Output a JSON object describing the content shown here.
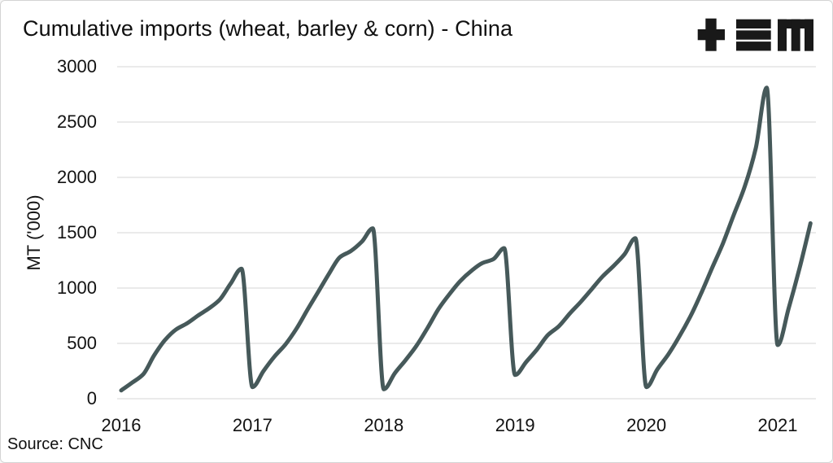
{
  "header": {
    "title": "Cumulative imports (wheat, barley & corn) - China"
  },
  "source": "Source: CNC",
  "chart_data": {
    "type": "line",
    "title": "Cumulative imports (wheat, barley & corn) - China",
    "xlabel": "",
    "ylabel": "MT ('000)",
    "ylim": [
      0,
      3000
    ],
    "yticks": [
      "0",
      "500",
      "1000",
      "1500",
      "2000",
      "2500",
      "3000"
    ],
    "ytick_values": [
      0,
      500,
      1000,
      1500,
      2000,
      2500,
      3000
    ],
    "xticks": [
      "2016",
      "2017",
      "2018",
      "2019",
      "2020",
      "2021"
    ],
    "grid": "horizontal",
    "legend_position": "none",
    "line_color": "#46595a",
    "grid_color": "#e3e3e3",
    "x_unit": "month",
    "x_start": "2016-01",
    "x_end": "2021-04",
    "pattern_note": "cumulative within each calendar year, resets every January",
    "series": [
      {
        "name": "Cumulative imports (wheat, barley & corn)",
        "x": [
          "2016-01",
          "2016-02",
          "2016-03",
          "2016-04",
          "2016-05",
          "2016-06",
          "2016-07",
          "2016-08",
          "2016-09",
          "2016-10",
          "2016-11",
          "2016-12",
          "2017-01",
          "2017-02",
          "2017-03",
          "2017-04",
          "2017-05",
          "2017-06",
          "2017-07",
          "2017-08",
          "2017-09",
          "2017-10",
          "2017-11",
          "2017-12",
          "2018-01",
          "2018-02",
          "2018-03",
          "2018-04",
          "2018-05",
          "2018-06",
          "2018-07",
          "2018-08",
          "2018-09",
          "2018-10",
          "2018-11",
          "2018-12",
          "2019-01",
          "2019-02",
          "2019-03",
          "2019-04",
          "2019-05",
          "2019-06",
          "2019-07",
          "2019-08",
          "2019-09",
          "2019-10",
          "2019-11",
          "2019-12",
          "2020-01",
          "2020-02",
          "2020-03",
          "2020-04",
          "2020-05",
          "2020-06",
          "2020-07",
          "2020-08",
          "2020-09",
          "2020-10",
          "2020-11",
          "2020-12",
          "2021-01",
          "2021-02",
          "2021-03",
          "2021-04"
        ],
        "values": [
          75,
          145,
          220,
          390,
          530,
          625,
          680,
          750,
          815,
          895,
          1040,
          1175,
          105,
          250,
          380,
          490,
          630,
          800,
          965,
          1130,
          1280,
          1335,
          1420,
          1540,
          85,
          230,
          350,
          480,
          640,
          810,
          945,
          1065,
          1155,
          1225,
          1260,
          1360,
          215,
          330,
          445,
          575,
          655,
          770,
          875,
          990,
          1105,
          1200,
          1305,
          1450,
          105,
          265,
          400,
          560,
          740,
          950,
          1180,
          1405,
          1665,
          1920,
          2265,
          2810,
          485,
          815,
          1180,
          1585
        ]
      }
    ]
  }
}
